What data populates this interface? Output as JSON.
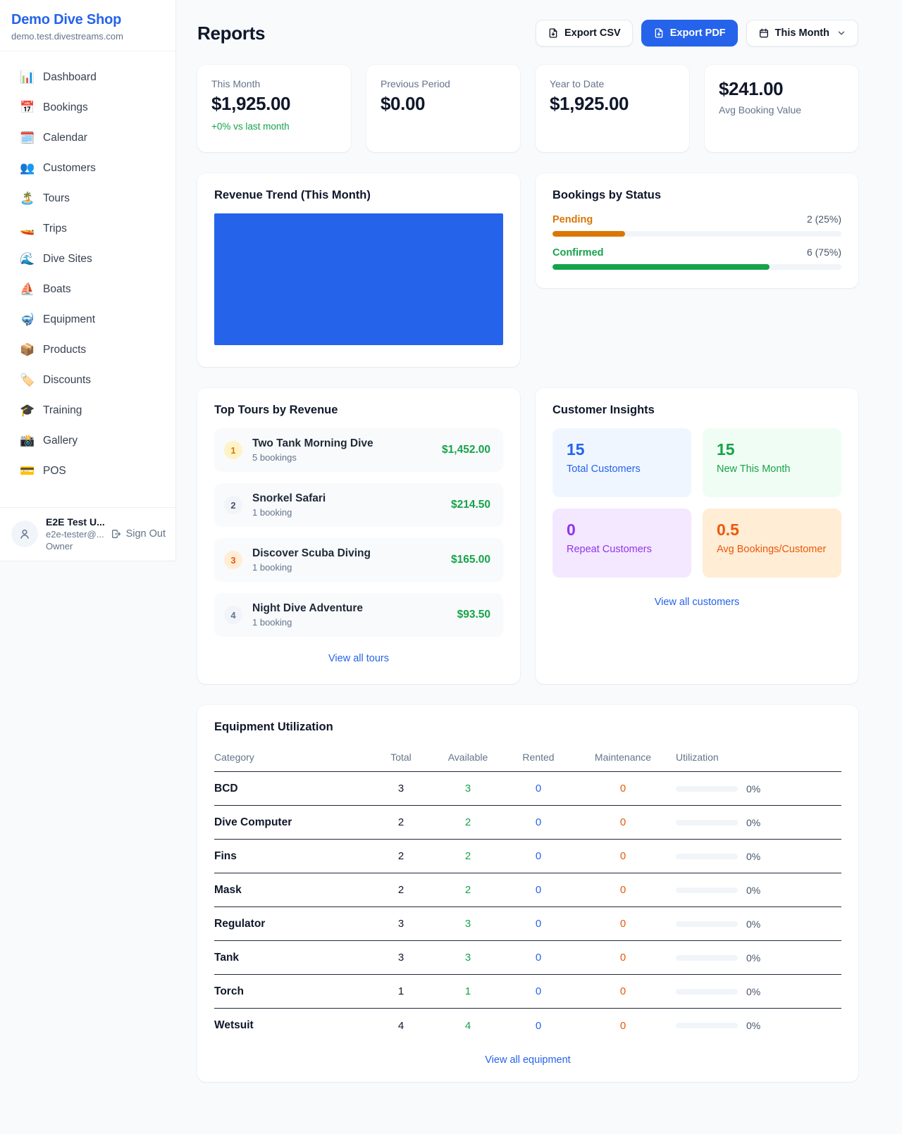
{
  "colors": {
    "accent": "#2563eb",
    "green": "#16a34a",
    "orange": "#d97706",
    "deep-orange": "#ea580c",
    "purple": "#9333ea"
  },
  "sidebar": {
    "brand": {
      "name": "Demo Dive Shop",
      "domain": "demo.test.divestreams.com"
    },
    "nav": [
      {
        "label": "Dashboard",
        "icon": "📊"
      },
      {
        "label": "Bookings",
        "icon": "📅"
      },
      {
        "label": "Calendar",
        "icon": "🗓️"
      },
      {
        "label": "Customers",
        "icon": "👥"
      },
      {
        "label": "Tours",
        "icon": "🏝️"
      },
      {
        "label": "Trips",
        "icon": "🚤"
      },
      {
        "label": "Dive Sites",
        "icon": "🌊"
      },
      {
        "label": "Boats",
        "icon": "⛵"
      },
      {
        "label": "Equipment",
        "icon": "🤿"
      },
      {
        "label": "Products",
        "icon": "📦"
      },
      {
        "label": "Discounts",
        "icon": "🏷️"
      },
      {
        "label": "Training",
        "icon": "🎓"
      },
      {
        "label": "Gallery",
        "icon": "📸"
      },
      {
        "label": "POS",
        "icon": "💳"
      }
    ],
    "user": {
      "name": "E2E Test U...",
      "email": "e2e-tester@...",
      "role": "Owner",
      "signout_label": "Sign Out"
    }
  },
  "header": {
    "title": "Reports",
    "export_csv": "Export CSV",
    "export_pdf": "Export PDF",
    "period": "This Month"
  },
  "stats": [
    {
      "label": "This Month",
      "value": "$1,925.00",
      "delta": "+0% vs last month"
    },
    {
      "label": "Previous Period",
      "value": "$0.00"
    },
    {
      "label": "Year to Date",
      "value": "$1,925.00"
    },
    {
      "label": "Avg Booking Value",
      "value": "$241.00"
    }
  ],
  "revenue_trend": {
    "title": "Revenue Trend (This Month)",
    "bar_color": "#2563eb"
  },
  "bookings_by_status": {
    "title": "Bookings by Status",
    "rows": [
      {
        "label": "Pending",
        "value": "2 (25%)",
        "pct": 25,
        "color": "#d97706"
      },
      {
        "label": "Confirmed",
        "value": "6 (75%)",
        "pct": 75,
        "color": "#16a34a"
      }
    ]
  },
  "top_tours": {
    "title": "Top Tours by Revenue",
    "items": [
      {
        "rank": "1",
        "name": "Two Tank Morning Dive",
        "bookings": "5 bookings",
        "revenue": "$1,452.00",
        "badge_bg": "#fef3c7",
        "badge_fg": "#d97706"
      },
      {
        "rank": "2",
        "name": "Snorkel Safari",
        "bookings": "1 booking",
        "revenue": "$214.50",
        "badge_bg": "#f1f5f9",
        "badge_fg": "#475569"
      },
      {
        "rank": "3",
        "name": "Discover Scuba Diving",
        "bookings": "1 booking",
        "revenue": "$165.00",
        "badge_bg": "#ffedd5",
        "badge_fg": "#ea580c"
      },
      {
        "rank": "4",
        "name": "Night Dive Adventure",
        "bookings": "1 booking",
        "revenue": "$93.50",
        "badge_bg": "#f1f5f9",
        "badge_fg": "#64748b"
      }
    ],
    "view_all": "View all tours"
  },
  "customer_insights": {
    "title": "Customer Insights",
    "boxes": [
      {
        "value": "15",
        "label": "Total Customers",
        "fg": "#2563eb",
        "bg": "#eff6ff"
      },
      {
        "value": "15",
        "label": "New This Month",
        "fg": "#16a34a",
        "bg": "#f0fdf4"
      },
      {
        "value": "0",
        "label": "Repeat Customers",
        "fg": "#9333ea",
        "bg": "#f3e8ff"
      },
      {
        "value": "0.5",
        "label": "Avg Bookings/Customer",
        "fg": "#ea580c",
        "bg": "#ffedd5"
      }
    ],
    "view_all": "View all customers"
  },
  "equipment": {
    "title": "Equipment Utilization",
    "columns": [
      "Category",
      "Total",
      "Available",
      "Rented",
      "Maintenance",
      "Utilization"
    ],
    "rows": [
      {
        "category": "BCD",
        "total": "3",
        "available": "3",
        "rented": "0",
        "maintenance": "0",
        "utilization": "0%",
        "utilization_pct": 0
      },
      {
        "category": "Dive Computer",
        "total": "2",
        "available": "2",
        "rented": "0",
        "maintenance": "0",
        "utilization": "0%",
        "utilization_pct": 0
      },
      {
        "category": "Fins",
        "total": "2",
        "available": "2",
        "rented": "0",
        "maintenance": "0",
        "utilization": "0%",
        "utilization_pct": 0
      },
      {
        "category": "Mask",
        "total": "2",
        "available": "2",
        "rented": "0",
        "maintenance": "0",
        "utilization": "0%",
        "utilization_pct": 0
      },
      {
        "category": "Regulator",
        "total": "3",
        "available": "3",
        "rented": "0",
        "maintenance": "0",
        "utilization": "0%",
        "utilization_pct": 0
      },
      {
        "category": "Tank",
        "total": "3",
        "available": "3",
        "rented": "0",
        "maintenance": "0",
        "utilization": "0%",
        "utilization_pct": 0
      },
      {
        "category": "Torch",
        "total": "1",
        "available": "1",
        "rented": "0",
        "maintenance": "0",
        "utilization": "0%",
        "utilization_pct": 0
      },
      {
        "category": "Wetsuit",
        "total": "4",
        "available": "4",
        "rented": "0",
        "maintenance": "0",
        "utilization": "0%",
        "utilization_pct": 0
      }
    ],
    "view_all": "View all equipment"
  },
  "chart_data": [
    {
      "type": "area",
      "title": "Revenue Trend (This Month)",
      "categories": [],
      "values": [],
      "color": "#2563eb",
      "note": "chart area renders as one solid blue block; no axes, ticks or labels visible"
    },
    {
      "type": "bar",
      "orientation": "horizontal",
      "title": "Bookings by Status",
      "categories": [
        "Pending",
        "Confirmed"
      ],
      "values": [
        2,
        6
      ],
      "value_labels": [
        "2 (25%)",
        "6 (75%)"
      ],
      "colors": [
        "#d97706",
        "#16a34a"
      ],
      "xlim": [
        0,
        8
      ]
    }
  ]
}
